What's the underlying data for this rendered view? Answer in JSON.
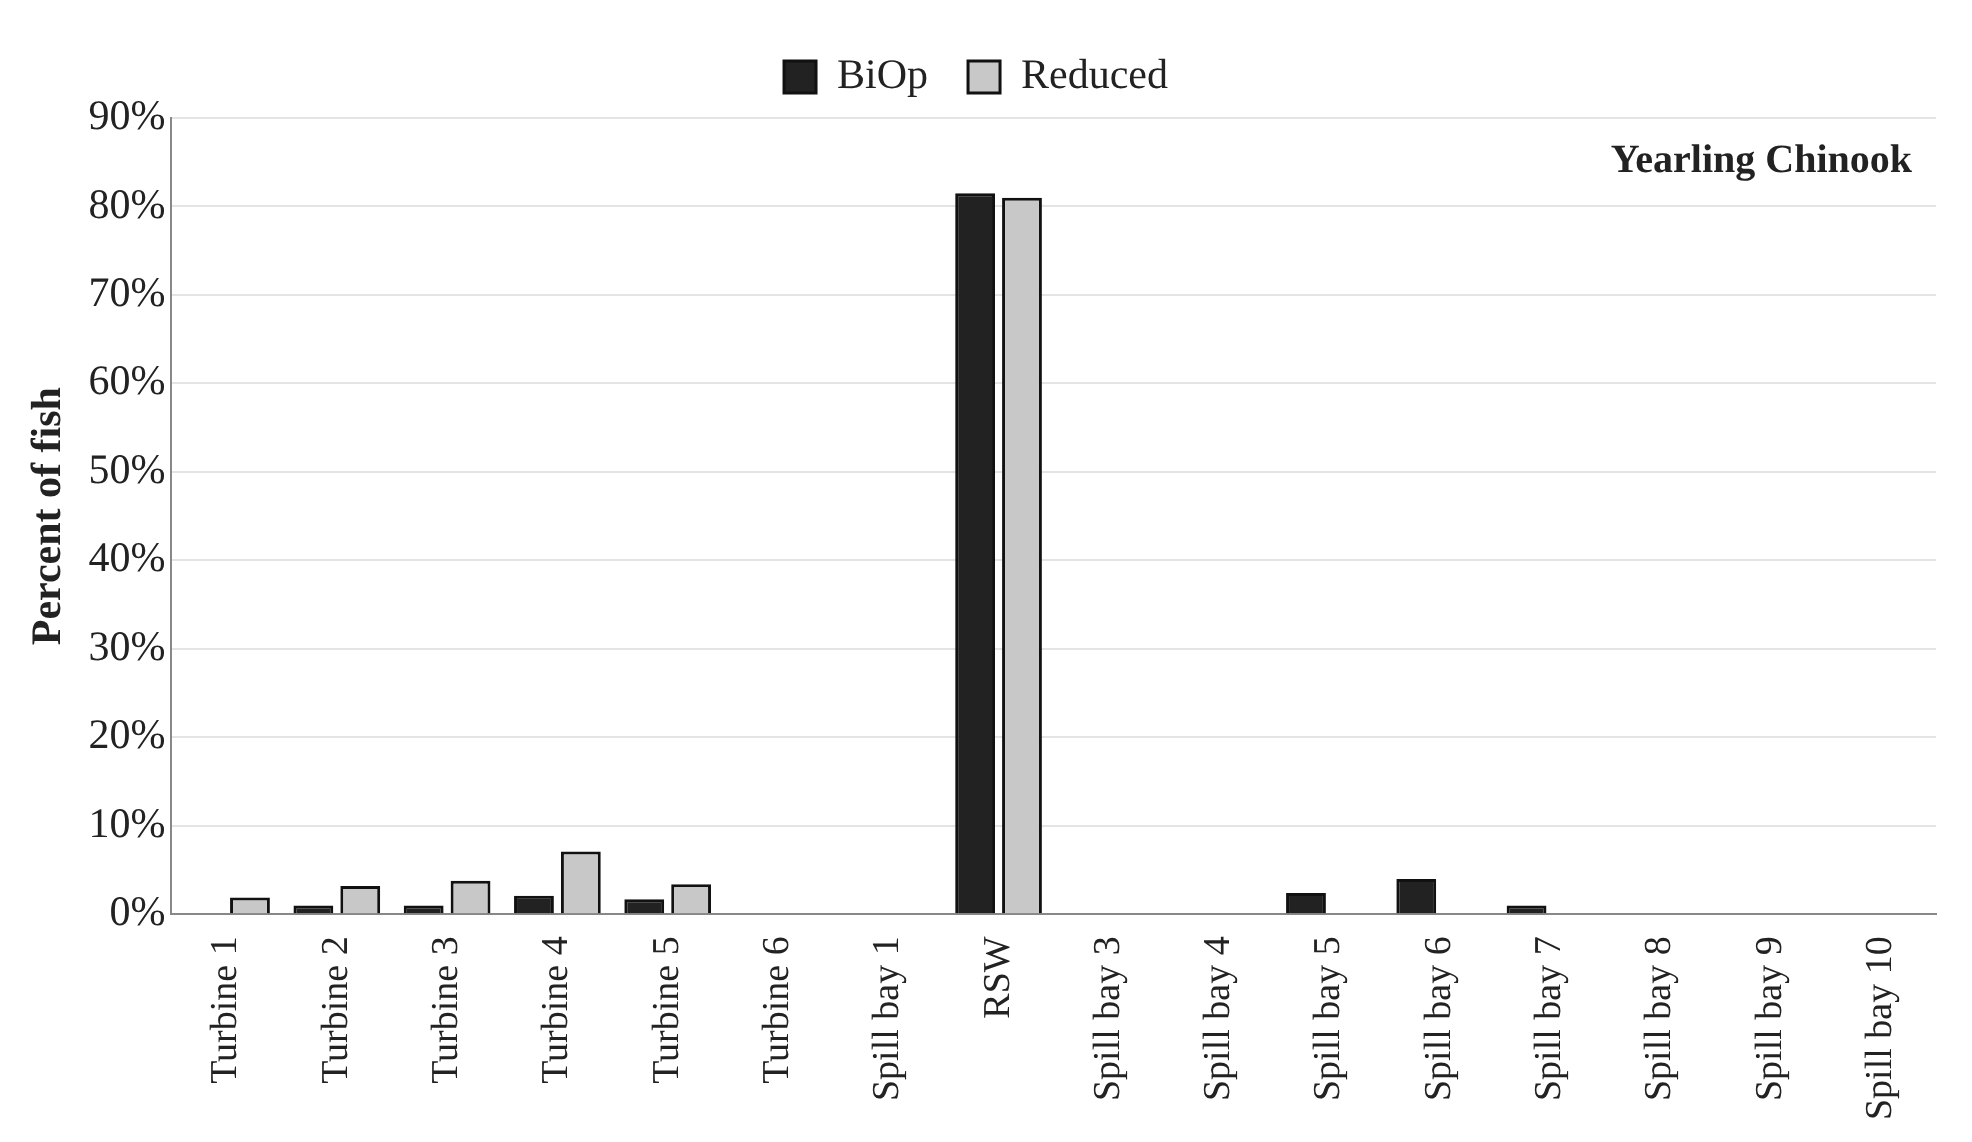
{
  "chart_data": {
    "type": "bar",
    "ylabel": "Percent of fish",
    "annotations": [
      "Yearling Chinook"
    ],
    "categories": [
      "Turbine 1",
      "Turbine 2",
      "Turbine 3",
      "Turbine 4",
      "Turbine 5",
      "Turbine 6",
      "Spill bay 1",
      "RSW",
      "Spill bay 3",
      "Spill bay 4",
      "Spill bay 5",
      "Spill bay 6",
      "Spill bay 7",
      "Spill bay 8",
      "Spill bay 9",
      "Spill bay 10"
    ],
    "series": [
      {
        "name": "BiOp",
        "color": "#222222",
        "values": [
          0,
          1,
          1,
          2.1,
          1.7,
          0,
          0,
          81.5,
          0,
          0,
          2.4,
          4,
          1,
          0,
          0,
          0
        ]
      },
      {
        "name": "Reduced",
        "color": "#c8c8c8",
        "values": [
          1.9,
          3.2,
          3.8,
          7.1,
          3.4,
          0,
          0,
          81,
          0,
          0,
          0,
          0,
          0,
          0,
          0,
          0
        ]
      }
    ],
    "ylim": [
      0,
      90
    ],
    "yticks": [
      {
        "value": 0,
        "label": "0%"
      },
      {
        "value": 10,
        "label": "10%"
      },
      {
        "value": 20,
        "label": "20%"
      },
      {
        "value": 30,
        "label": "30%"
      },
      {
        "value": 40,
        "label": "40%"
      },
      {
        "value": 50,
        "label": "50%"
      },
      {
        "value": 60,
        "label": "60%"
      },
      {
        "value": 70,
        "label": "70%"
      },
      {
        "value": 80,
        "label": "80%"
      },
      {
        "value": 90,
        "label": "90%"
      }
    ],
    "grid": "y",
    "legend": "top"
  }
}
